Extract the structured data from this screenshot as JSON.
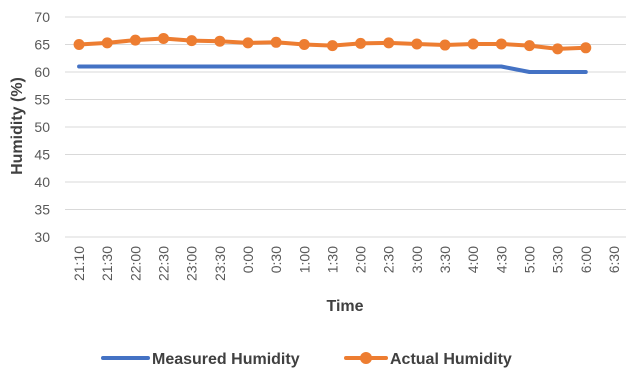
{
  "chart_data": {
    "type": "line",
    "xlabel": "Time",
    "ylabel": "Humidity (%)",
    "ylim": [
      30,
      70
    ],
    "yticks": [
      30,
      35,
      40,
      45,
      50,
      55,
      60,
      65,
      70
    ],
    "grid": true,
    "legend_position": "bottom",
    "categories": [
      "21:10",
      "21:30",
      "22:00",
      "22:30",
      "23:00",
      "23:30",
      "0:00",
      "0:30",
      "1:00",
      "1:30",
      "2:00",
      "2:30",
      "3:00",
      "3:30",
      "4:00",
      "4:30",
      "5:00",
      "5:30",
      "6:00",
      "6:30"
    ],
    "series": [
      {
        "name": "Measured Humidity",
        "color": "#4472C4",
        "marker": "none",
        "values": [
          61,
          61,
          61,
          61,
          61,
          61,
          61,
          61,
          61,
          61,
          61,
          61,
          61,
          61,
          61,
          61,
          60,
          60,
          60,
          null
        ]
      },
      {
        "name": "Actual Humidity",
        "color": "#ED7D31",
        "marker": "circle",
        "values": [
          65,
          65.3,
          65.8,
          66.1,
          65.7,
          65.6,
          65.3,
          65.4,
          65,
          64.8,
          65.2,
          65.3,
          65.1,
          64.9,
          65.1,
          65.1,
          64.8,
          64.2,
          64.4,
          null
        ]
      }
    ]
  }
}
